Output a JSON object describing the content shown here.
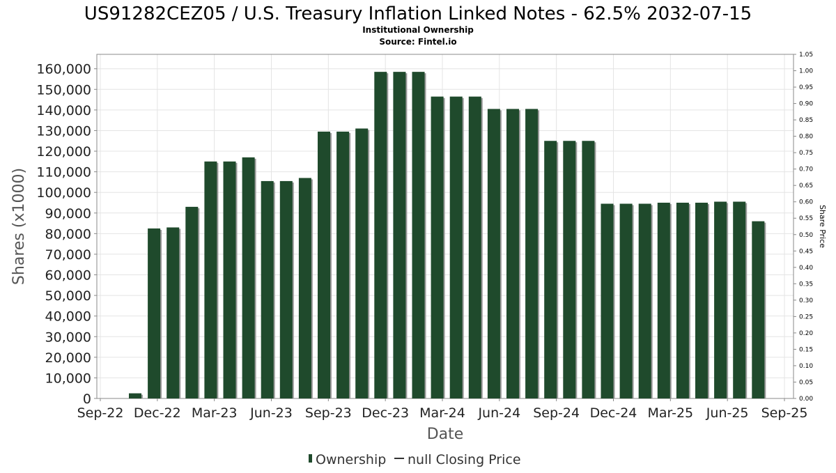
{
  "chart_data": {
    "type": "bar",
    "title": "US91282CEZ05 / U.S. Treasury Inflation Linked Notes - 62.5% 2032-07-15",
    "subtitle_lines": [
      "Institutional Ownership",
      "Source: Fintel.io"
    ],
    "xlabel": "Date",
    "ylabel": "Shares (x1000)",
    "y2label": "Share Price",
    "x_tick_labels": [
      "Sep-22",
      "Dec-22",
      "Mar-23",
      "Jun-23",
      "Sep-23",
      "Dec-23",
      "Mar-24",
      "Jun-24",
      "Sep-24",
      "Dec-24",
      "Mar-25",
      "Jun-25",
      "Sep-25"
    ],
    "y_tick_labels": [
      "0",
      "10,000",
      "20,000",
      "30,000",
      "40,000",
      "50,000",
      "60,000",
      "70,000",
      "80,000",
      "90,000",
      "100,000",
      "110,000",
      "120,000",
      "130,000",
      "140,000",
      "150,000",
      "160,000"
    ],
    "y2_tick_labels": [
      "0.00",
      "0.05",
      "0.10",
      "0.15",
      "0.20",
      "0.25",
      "0.30",
      "0.35",
      "0.40",
      "0.45",
      "0.50",
      "0.55",
      "0.60",
      "0.65",
      "0.70",
      "0.75",
      "0.80",
      "0.85",
      "0.90",
      "0.95",
      "1.00",
      "1.05"
    ],
    "ylim": [
      0,
      167000
    ],
    "y2lim": [
      0,
      1.05
    ],
    "grid": true,
    "legend_position": "bottom",
    "bar_color": "#1f4a2c",
    "series": [
      {
        "name": "Ownership",
        "values": [
          2500,
          82500,
          83000,
          93000,
          115000,
          115000,
          117000,
          105500,
          105500,
          107000,
          129500,
          129500,
          131000,
          158500,
          158500,
          158500,
          146500,
          146500,
          146500,
          140500,
          140500,
          140500,
          125000,
          125000,
          125000,
          94500,
          94500,
          94500,
          95000,
          95000,
          95000,
          95500,
          95500,
          86000
        ]
      }
    ],
    "legend": [
      {
        "label": "Ownership",
        "kind": "bar"
      },
      {
        "label": "null Closing Price",
        "kind": "line"
      }
    ]
  }
}
